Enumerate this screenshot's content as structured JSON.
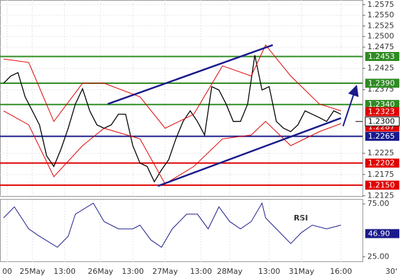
{
  "chart_data": {
    "type": "line",
    "timeframe": "30'",
    "xlim": [
      -1,
      100
    ],
    "xticks": [
      {
        "value": 1,
        "label": "00"
      },
      {
        "value": 8,
        "label": "25May"
      },
      {
        "value": 17,
        "label": "13:00"
      },
      {
        "value": 27,
        "label": "26May"
      },
      {
        "value": 36,
        "label": "13:00"
      },
      {
        "value": 45,
        "label": "27May"
      },
      {
        "value": 55,
        "label": "13:00"
      },
      {
        "value": 63,
        "label": "28May"
      },
      {
        "value": 74,
        "label": "13:00"
      },
      {
        "value": 83,
        "label": "31May"
      },
      {
        "value": 94,
        "label": "16:00"
      }
    ],
    "ylim": [
      1.2124,
      1.2586
    ],
    "yticks": [
      1.2575,
      {
        "value": 1.255,
        "label": "1.2550"
      },
      1.2525,
      {
        "value": 1.25,
        "label": "1.2500"
      },
      1.2475,
      1.2425,
      1.2375,
      1.2225,
      1.2175,
      1.2125
    ],
    "grid": true,
    "series": [
      {
        "name": "price",
        "color": "#000000",
        "x": [
          0,
          2,
          4,
          6,
          8,
          10,
          12,
          14,
          16,
          18,
          20,
          22,
          24,
          26,
          28,
          30,
          32,
          34,
          36,
          38,
          40,
          42,
          44,
          46,
          48,
          50,
          52,
          54,
          56,
          58,
          60,
          62,
          64,
          66,
          68,
          70,
          72,
          74,
          76,
          78,
          80,
          82,
          84,
          86,
          88,
          90,
          92,
          94
        ],
        "values": [
          1.239,
          1.2407,
          1.2415,
          1.2358,
          1.2325,
          1.2292,
          1.2219,
          1.2194,
          1.2235,
          1.2284,
          1.2341,
          1.2377,
          1.2325,
          1.2292,
          1.2284,
          1.2292,
          1.2317,
          1.2317,
          1.2243,
          1.2202,
          1.2194,
          1.2158,
          1.2186,
          1.221,
          1.2259,
          1.23,
          1.2325,
          1.23,
          1.2268,
          1.2382,
          1.2374,
          1.2341,
          1.23,
          1.23,
          1.2341,
          1.2456,
          1.2374,
          1.2382,
          1.23,
          1.2284,
          1.2276,
          1.2292,
          1.2325,
          1.2317,
          1.2309,
          1.23,
          1.2325,
          1.2317
        ]
      },
      {
        "name": "upper-band",
        "color": "#dd0000",
        "x": [
          0,
          7,
          14,
          22,
          28,
          38,
          45,
          53,
          61,
          69,
          73,
          80,
          88,
          94
        ],
        "values": [
          1.2447,
          1.2439,
          1.23,
          1.239,
          1.239,
          1.2358,
          1.2284,
          1.2317,
          1.2431,
          1.2407,
          1.248,
          1.2407,
          1.2341,
          1.2325
        ]
      },
      {
        "name": "lower-band",
        "color": "#dd0000",
        "x": [
          0,
          7,
          14,
          22,
          28,
          38,
          45,
          53,
          61,
          69,
          73,
          80,
          88,
          94
        ],
        "values": [
          1.2325,
          1.2292,
          1.217,
          1.2243,
          1.2284,
          1.2259,
          1.2153,
          1.2194,
          1.2259,
          1.2268,
          1.23,
          1.2243,
          1.2276,
          1.2295
        ]
      },
      {
        "name": "upper-channel",
        "color": "#1a1a8c",
        "x": [
          29,
          75
        ],
        "values": [
          1.2341,
          1.248
        ]
      },
      {
        "name": "lower-channel",
        "color": "#1a1a8c",
        "x": [
          43,
          94
        ],
        "values": [
          1.2148,
          1.2308
        ]
      }
    ],
    "levels": [
      {
        "value": 1.2453,
        "label": "1.2453",
        "color": "#2e8b22",
        "line": true
      },
      {
        "value": 1.239,
        "label": "1.2390",
        "color": "#2e8b22",
        "line": true
      },
      {
        "value": 1.234,
        "label": "1.2340",
        "color": "#2e8b22",
        "line": true
      },
      {
        "value": 1.2323,
        "label": "1.2323",
        "color": "#e00000",
        "line": false
      },
      {
        "value": 1.2287,
        "label": "1.2287",
        "color": "#e00000",
        "line": false
      },
      {
        "value": 1.2265,
        "label": "1.2265",
        "color": "#1a1a8c",
        "line": true
      },
      {
        "value": 1.2202,
        "label": "1.2202",
        "color": "#e00000",
        "line": true
      },
      {
        "value": 1.215,
        "label": "1.2150",
        "color": "#e00000",
        "line": true
      }
    ],
    "current": {
      "value": 1.23,
      "label": "1.2300"
    },
    "rsi": {
      "name": "RSI",
      "color": "#1a1a8c",
      "ylim": [
        20,
        79
      ],
      "yticks": [
        {
          "value": 75,
          "label": "75.00"
        },
        {
          "value": 25,
          "label": "25.00"
        }
      ],
      "x": [
        0,
        3,
        7,
        10,
        15,
        18,
        20,
        25,
        28,
        32,
        36,
        38,
        41,
        44,
        47,
        51,
        54,
        57,
        60,
        63,
        66,
        69,
        72,
        73,
        76,
        80,
        83,
        86,
        90,
        94
      ],
      "values": [
        61.8,
        72.2,
        51.4,
        44.4,
        34.0,
        44.4,
        65.3,
        75.7,
        58.3,
        51.4,
        51.4,
        54.9,
        41.0,
        34.0,
        51.4,
        65.3,
        65.3,
        51.4,
        72.2,
        58.3,
        51.4,
        58.3,
        75.7,
        61.8,
        51.4,
        37.5,
        47.9,
        54.9,
        51.4,
        54.9
      ],
      "current": {
        "value": 46.9,
        "label": "46.90"
      }
    }
  }
}
